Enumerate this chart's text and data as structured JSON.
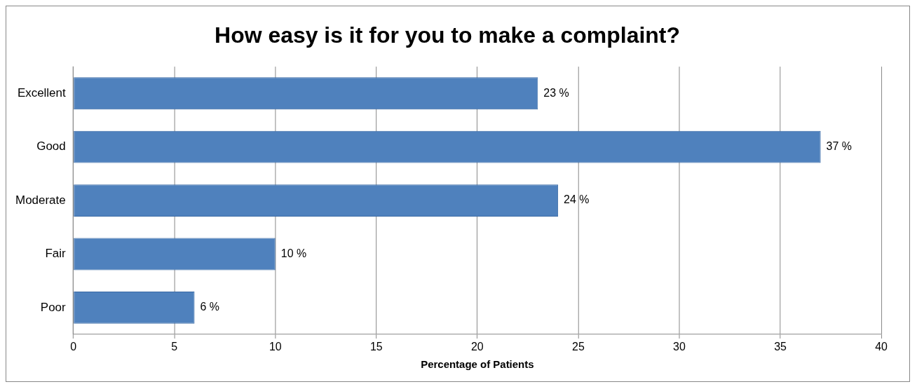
{
  "chart_data": {
    "type": "bar",
    "orientation": "horizontal",
    "title": "How easy is it for you to make a complaint?",
    "xlabel": "Percentage of Patients",
    "categories": [
      "Excellent",
      "Good",
      "Moderate",
      "Fair",
      "Poor"
    ],
    "values": [
      23,
      37,
      24,
      10,
      6
    ],
    "value_labels": [
      "23 %",
      "37 %",
      "24 %",
      "10 %",
      "6 %"
    ],
    "color": "#4f81bd",
    "xlim": [
      0,
      40
    ],
    "xticks": [
      0,
      5,
      10,
      15,
      20,
      25,
      30,
      35,
      40
    ],
    "grid": "x",
    "legend": false
  }
}
